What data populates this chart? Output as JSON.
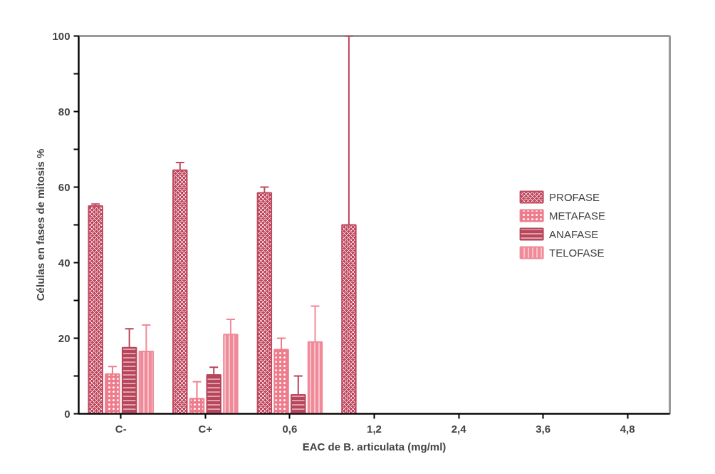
{
  "chart_data": {
    "type": "bar",
    "xlabel": "EAC de B. articulata (mg/ml)",
    "ylabel": "Células en fases de mitosis %",
    "categories": [
      "C-",
      "C+",
      "0,6",
      "1,2",
      "2,4",
      "3,6",
      "4,8"
    ],
    "series": [
      {
        "name": "PROFASE",
        "color": "#c0485e",
        "values": [
          55,
          64.5,
          58.5,
          50,
          null,
          null,
          null
        ],
        "errors": [
          0.5,
          2,
          1.5,
          50,
          null,
          null,
          null
        ]
      },
      {
        "name": "METAFASE",
        "color": "#ee7c8c",
        "values": [
          10.5,
          4,
          17,
          null,
          null,
          null,
          null
        ],
        "errors": [
          2,
          4.5,
          3,
          null,
          null,
          null,
          null
        ]
      },
      {
        "name": "ANAFASE",
        "color": "#b8455a",
        "values": [
          17.5,
          10.3,
          5,
          null,
          null,
          null,
          null
        ],
        "errors": [
          5,
          2,
          5,
          null,
          null,
          null,
          null
        ]
      },
      {
        "name": "TELOFASE",
        "color": "#f08a98",
        "values": [
          16.5,
          21,
          19,
          null,
          null,
          null,
          null
        ],
        "errors": [
          7,
          4,
          9.5,
          null,
          null,
          null,
          null
        ]
      }
    ],
    "ylim": [
      0,
      100
    ],
    "yticks": [
      0,
      {
        "value": 10,
        "label": null
      },
      20,
      {
        "value": 30,
        "label": null
      },
      40,
      {
        "value": 50,
        "label": null
      },
      60,
      {
        "value": 70,
        "label": null
      },
      80,
      {
        "value": 90,
        "label": null
      },
      100
    ],
    "grid": false,
    "legend": "right"
  }
}
